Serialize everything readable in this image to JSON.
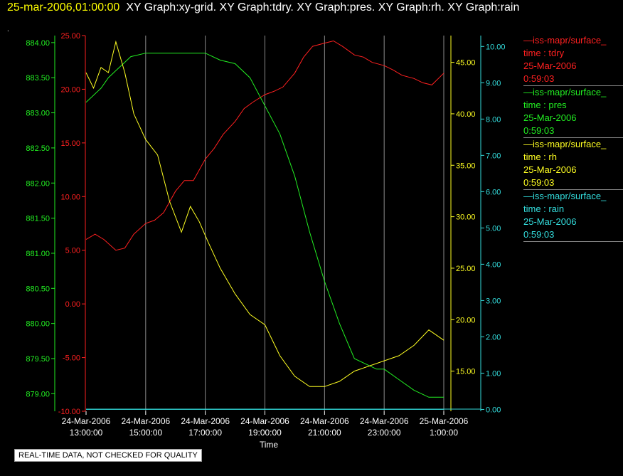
{
  "header": {
    "timestamp": "25-mar-2006,01:00:00",
    "graphs": "XY Graph:xy-grid.  XY Graph:tdry.  XY Graph:pres.  XY Graph:rh.  XY Graph:rain"
  },
  "dot": ".",
  "footer": "REAL-TIME DATA, NOT CHECKED FOR QUALITY",
  "legend": [
    {
      "source": "—iss-mapr/surface_",
      "var": "time : tdry",
      "date": "25-Mar-2006",
      "time": "0:59:03",
      "color": "#ff2020"
    },
    {
      "source": "—iss-mapr/surface_",
      "var": "time : pres",
      "date": "25-Mar-2006",
      "time": "0:59:03",
      "color": "#22ee22"
    },
    {
      "source": "—iss-mapr/surface_",
      "var": "time : rh",
      "date": "25-Mar-2006",
      "time": "0:59:03",
      "color": "#ffff22"
    },
    {
      "source": "—iss-mapr/surface_",
      "var": "time : rain",
      "date": "25-Mar-2006",
      "time": "0:59:03",
      "color": "#33dddd"
    }
  ],
  "chart_data": {
    "type": "line",
    "xlabel": "Time",
    "x_ticks": [
      [
        "24-Mar-2006",
        "13:00:00"
      ],
      [
        "24-Mar-2006",
        "15:00:00"
      ],
      [
        "24-Mar-2006",
        "17:00:00"
      ],
      [
        "24-Mar-2006",
        "19:00:00"
      ],
      [
        "24-Mar-2006",
        "21:00:00"
      ],
      [
        "24-Mar-2006",
        "23:00:00"
      ],
      [
        "25-Mar-2006",
        "1:00:00"
      ]
    ],
    "x_hours": [
      13,
      15,
      17,
      19,
      21,
      23,
      25
    ],
    "xlim": [
      13,
      25
    ],
    "grid": "vertical",
    "axes": [
      {
        "id": "pres",
        "side": "left",
        "color": "#22ee22",
        "ylim": [
          878.75,
          884.1
        ],
        "ticks": [
          "884.00",
          "883.50",
          "883.00",
          "882.50",
          "882.00",
          "881.50",
          "881.00",
          "880.50",
          "880.00",
          "879.50",
          "879.00"
        ],
        "tick_values": [
          884,
          883.5,
          883,
          882.5,
          882,
          881.5,
          881,
          880.5,
          880,
          879.5,
          879
        ]
      },
      {
        "id": "tdry",
        "side": "left",
        "color": "#ff2020",
        "ylim": [
          -10,
          25
        ],
        "ticks": [
          "25.00",
          "20.00",
          "15.00",
          "10.00",
          "5.00",
          "0.00",
          "-5.00",
          "-10.00"
        ],
        "tick_values": [
          25,
          20,
          15,
          10,
          5,
          0,
          -5,
          -10
        ]
      },
      {
        "id": "rh",
        "side": "right",
        "color": "#ffff22",
        "ylim": [
          11.1,
          47.6
        ],
        "ticks": [
          "45.00",
          "40.00",
          "35.00",
          "30.00",
          "25.00",
          "20.00",
          "15.00"
        ],
        "tick_values": [
          45,
          40,
          35,
          30,
          25,
          20,
          15
        ]
      },
      {
        "id": "rain",
        "side": "right",
        "color": "#33dddd",
        "ylim": [
          -0.05,
          10.3
        ],
        "ticks": [
          "10.00",
          "9.00",
          "8.00",
          "7.00",
          "6.00",
          "5.00",
          "4.00",
          "3.00",
          "2.00",
          "1.00",
          "0.00"
        ],
        "tick_values": [
          10,
          9,
          8,
          7,
          6,
          5,
          4,
          3,
          2,
          1,
          0
        ]
      }
    ],
    "series": [
      {
        "name": "tdry",
        "axis": "tdry",
        "color": "#ff2020",
        "x": [
          13.0,
          13.3,
          13.6,
          14.0,
          14.3,
          14.6,
          15.0,
          15.3,
          15.6,
          16.0,
          16.3,
          16.6,
          17.0,
          17.3,
          17.6,
          18.0,
          18.3,
          18.6,
          19.0,
          19.3,
          19.6,
          20.0,
          20.3,
          20.6,
          21.0,
          21.3,
          21.6,
          22.0,
          22.3,
          22.6,
          23.0,
          23.3,
          23.6,
          24.0,
          24.3,
          24.6,
          25.0
        ],
        "values": [
          6.0,
          6.5,
          6.0,
          5.0,
          5.2,
          6.5,
          7.5,
          7.8,
          8.5,
          10.5,
          11.5,
          11.5,
          13.5,
          14.5,
          15.8,
          17.0,
          18.2,
          18.8,
          19.5,
          19.8,
          20.2,
          21.5,
          23.0,
          24.0,
          24.3,
          24.5,
          24.0,
          23.2,
          23.0,
          22.5,
          22.2,
          21.8,
          21.3,
          21.0,
          20.6,
          20.4,
          21.5
        ]
      },
      {
        "name": "pres",
        "axis": "pres",
        "color": "#22ee22",
        "x": [
          13.0,
          13.25,
          13.5,
          13.75,
          14.0,
          14.25,
          14.5,
          15.0,
          15.5,
          16.0,
          16.5,
          17.0,
          17.5,
          18.0,
          18.5,
          19.0,
          19.5,
          20.0,
          20.5,
          21.0,
          21.5,
          22.0,
          22.5,
          22.75,
          23.0,
          23.5,
          24.0,
          24.5,
          25.0
        ],
        "values": [
          883.15,
          883.25,
          883.35,
          883.5,
          883.6,
          883.7,
          883.8,
          883.85,
          883.85,
          883.85,
          883.85,
          883.85,
          883.75,
          883.7,
          883.5,
          883.1,
          882.7,
          882.1,
          881.3,
          880.6,
          880.0,
          879.5,
          879.4,
          879.35,
          879.35,
          879.2,
          879.05,
          878.95,
          878.95
        ]
      },
      {
        "name": "rh",
        "axis": "rh",
        "color": "#ffff22",
        "x": [
          13.0,
          13.25,
          13.5,
          13.75,
          14.0,
          14.3,
          14.6,
          15.0,
          15.4,
          15.8,
          16.2,
          16.5,
          16.8,
          17.1,
          17.5,
          18.0,
          18.5,
          19.0,
          19.5,
          20.0,
          20.5,
          21.0,
          21.5,
          22.0,
          22.5,
          23.0,
          23.5,
          24.0,
          24.5,
          25.0
        ],
        "values": [
          44.0,
          42.5,
          44.5,
          44.0,
          47.0,
          44.0,
          40.0,
          37.5,
          36.0,
          31.5,
          28.5,
          31.0,
          29.5,
          27.5,
          25.0,
          22.5,
          20.5,
          19.5,
          16.5,
          14.5,
          13.5,
          13.5,
          14.0,
          15.0,
          15.5,
          16.0,
          16.5,
          17.5,
          19.0,
          18.0
        ]
      },
      {
        "name": "rain",
        "axis": "rain",
        "color": "#33dddd",
        "x": [
          13.0,
          25.0
        ],
        "values": [
          0.0,
          0.0
        ]
      }
    ]
  }
}
